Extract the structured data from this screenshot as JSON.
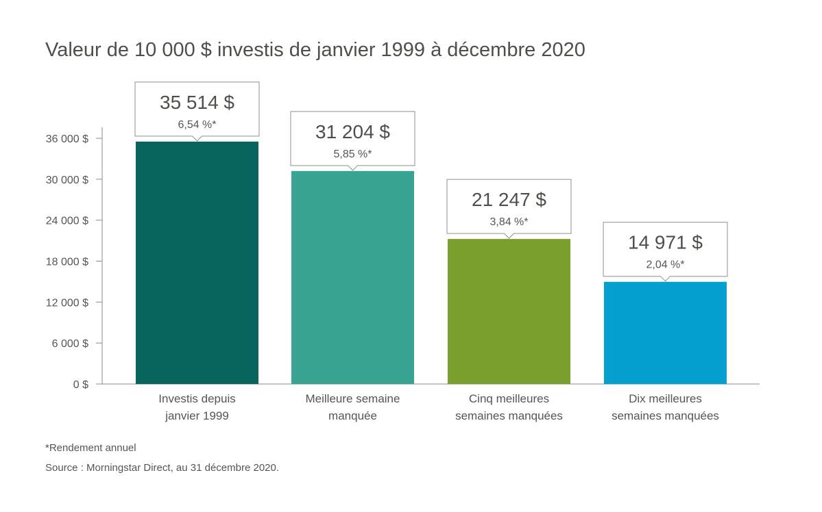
{
  "chart_data": {
    "type": "bar",
    "title": "Valeur de 10 000 $ investis de janvier 1999 à décembre 2020",
    "categories": [
      [
        "Investis depuis",
        "janvier 1999"
      ],
      [
        "Meilleure semaine",
        "manquée"
      ],
      [
        "Cinq meilleures",
        "semaines manquées"
      ],
      [
        "Dix meilleures",
        "semaines manquées"
      ]
    ],
    "values": [
      35514,
      31204,
      21247,
      14971
    ],
    "value_labels": [
      "35 514 $",
      "31 204 $",
      "21 247 $",
      "14 971 $"
    ],
    "rate_labels": [
      "6,54 %*",
      "5,85 %*",
      "3,84 %*",
      "2,04 %*"
    ],
    "colors": [
      "#07655d",
      "#38a592",
      "#7b9f2c",
      "#05a0cf"
    ],
    "yticks": [
      0,
      6000,
      12000,
      18000,
      24000,
      30000,
      36000
    ],
    "ytick_labels": [
      "0 $",
      "6 000 $",
      "12 000 $",
      "18 000 $",
      "24 000 $",
      "30 000 $",
      "36 000 $"
    ],
    "ylim": [
      0,
      36000
    ],
    "xlabel": "",
    "ylabel": "",
    "grid": false,
    "legend": "none"
  },
  "footnotes": {
    "note": "*Rendement annuel",
    "source": "Source : Morningstar Direct, au 31 décembre 2020."
  }
}
